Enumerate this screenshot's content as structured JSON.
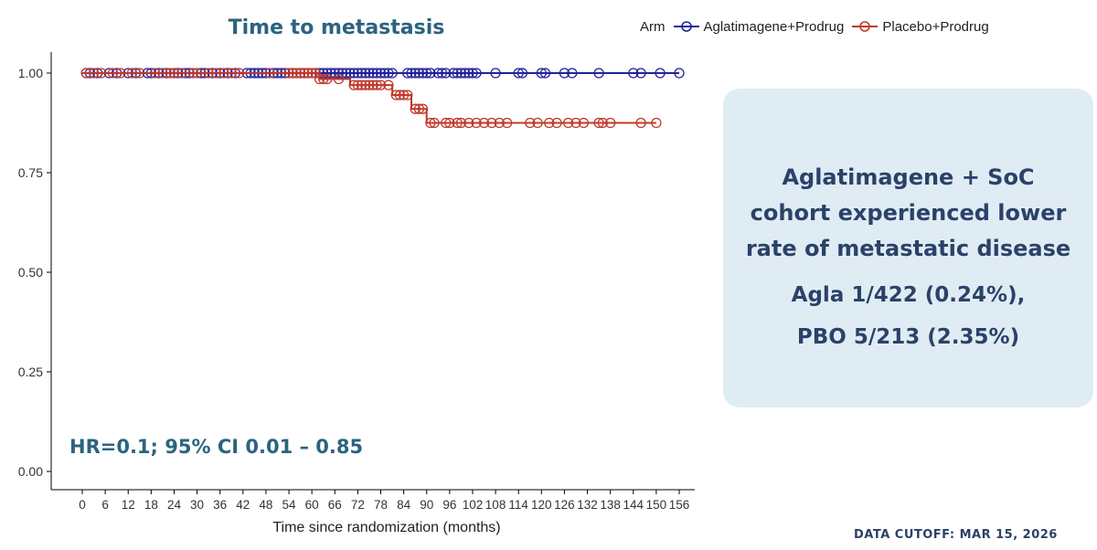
{
  "chart_data": {
    "type": "line",
    "title": "Time to metastasis",
    "xlabel": "Time since randomization (months)",
    "ylabel": "",
    "xlim": [
      0,
      156
    ],
    "ylim": [
      0,
      1
    ],
    "xticks": [
      "0",
      "6",
      "12",
      "18",
      "24",
      "30",
      "36",
      "42",
      "48",
      "54",
      "60",
      "66",
      "72",
      "78",
      "84",
      "90",
      "96",
      "102",
      "108",
      "114",
      "120",
      "126",
      "132",
      "138",
      "144",
      "150",
      "156"
    ],
    "yticks": [
      "0.00",
      "0.25",
      "0.50",
      "0.75",
      "1.00"
    ],
    "grid": false,
    "legend": {
      "title": "Arm",
      "placement": "top-right",
      "entries": [
        "Aglatimagene+Prodrug",
        "Placebo+Prodrug"
      ]
    },
    "series": [
      {
        "name": "Aglatimagene+Prodrug",
        "color": "#22229a",
        "steps": [
          [
            0,
            1.0
          ],
          [
            156,
            1.0
          ]
        ],
        "censors": [
          [
            1,
            1
          ],
          [
            2,
            1
          ],
          [
            4,
            1
          ],
          [
            7,
            1
          ],
          [
            9,
            1
          ],
          [
            12,
            1
          ],
          [
            14,
            1
          ],
          [
            17,
            1
          ],
          [
            18,
            1
          ],
          [
            20,
            1
          ],
          [
            22,
            1
          ],
          [
            24,
            1
          ],
          [
            25,
            1
          ],
          [
            27,
            1
          ],
          [
            28,
            1
          ],
          [
            31,
            1
          ],
          [
            32,
            1
          ],
          [
            34,
            1
          ],
          [
            36,
            1
          ],
          [
            38,
            1
          ],
          [
            40,
            1
          ],
          [
            43,
            1
          ],
          [
            44,
            1
          ],
          [
            45,
            1
          ],
          [
            46,
            1
          ],
          [
            47,
            1
          ],
          [
            48,
            1
          ],
          [
            50,
            1
          ],
          [
            51,
            1
          ],
          [
            52,
            1
          ],
          [
            53,
            1
          ],
          [
            55,
            1
          ],
          [
            57,
            1
          ],
          [
            58,
            1
          ],
          [
            59,
            1
          ],
          [
            61,
            1
          ],
          [
            62,
            1
          ],
          [
            63,
            1
          ],
          [
            64,
            1
          ],
          [
            65,
            1
          ],
          [
            66,
            1
          ],
          [
            67,
            1
          ],
          [
            68,
            1
          ],
          [
            69,
            1
          ],
          [
            70,
            1
          ],
          [
            71,
            1
          ],
          [
            72,
            1
          ],
          [
            73,
            1
          ],
          [
            74,
            1
          ],
          [
            75,
            1
          ],
          [
            76,
            1
          ],
          [
            77,
            1
          ],
          [
            78,
            1
          ],
          [
            79,
            1
          ],
          [
            80,
            1
          ],
          [
            81,
            1
          ],
          [
            85,
            1
          ],
          [
            86,
            1
          ],
          [
            87,
            1
          ],
          [
            88,
            1
          ],
          [
            89,
            1
          ],
          [
            90,
            1
          ],
          [
            91,
            1
          ],
          [
            93,
            1
          ],
          [
            94,
            1
          ],
          [
            95,
            1
          ],
          [
            97,
            1
          ],
          [
            98,
            1
          ],
          [
            99,
            1
          ],
          [
            100,
            1
          ],
          [
            101,
            1
          ],
          [
            102,
            1
          ],
          [
            103,
            1
          ],
          [
            108,
            1
          ],
          [
            114,
            1
          ],
          [
            115,
            1
          ],
          [
            120,
            1
          ],
          [
            121,
            1
          ],
          [
            126,
            1
          ],
          [
            128,
            1
          ],
          [
            135,
            1
          ],
          [
            144,
            1
          ],
          [
            146,
            1
          ],
          [
            151,
            1
          ],
          [
            156,
            1
          ]
        ]
      },
      {
        "name": "Placebo+Prodrug",
        "color": "#c0392b",
        "steps": [
          [
            0,
            1.0
          ],
          [
            62,
            1.0
          ],
          [
            62,
            0.985
          ],
          [
            70,
            0.985
          ],
          [
            70,
            0.97
          ],
          [
            81,
            0.97
          ],
          [
            81,
            0.945
          ],
          [
            86,
            0.945
          ],
          [
            86,
            0.91
          ],
          [
            90,
            0.91
          ],
          [
            90,
            0.875
          ],
          [
            150,
            0.875
          ]
        ],
        "censors": [
          [
            1,
            1
          ],
          [
            3,
            1
          ],
          [
            5,
            1
          ],
          [
            8,
            1
          ],
          [
            10,
            1
          ],
          [
            13,
            1
          ],
          [
            15,
            1
          ],
          [
            19,
            1
          ],
          [
            21,
            1
          ],
          [
            23,
            1
          ],
          [
            24,
            1
          ],
          [
            26,
            1
          ],
          [
            29,
            1
          ],
          [
            30,
            1
          ],
          [
            33,
            1
          ],
          [
            35,
            1
          ],
          [
            37,
            1
          ],
          [
            39,
            1
          ],
          [
            41,
            1
          ],
          [
            49,
            1
          ],
          [
            54,
            1
          ],
          [
            55,
            1
          ],
          [
            56,
            1
          ],
          [
            57,
            1
          ],
          [
            58,
            1
          ],
          [
            59,
            1
          ],
          [
            60,
            1
          ],
          [
            61,
            1
          ],
          [
            62,
            0.985
          ],
          [
            63,
            0.985
          ],
          [
            64,
            0.985
          ],
          [
            67,
            0.985
          ],
          [
            71,
            0.97
          ],
          [
            72,
            0.97
          ],
          [
            73,
            0.97
          ],
          [
            74,
            0.97
          ],
          [
            75,
            0.97
          ],
          [
            76,
            0.97
          ],
          [
            77,
            0.97
          ],
          [
            78,
            0.97
          ],
          [
            80,
            0.97
          ],
          [
            82,
            0.945
          ],
          [
            83,
            0.945
          ],
          [
            84,
            0.945
          ],
          [
            85,
            0.945
          ],
          [
            87,
            0.91
          ],
          [
            88,
            0.91
          ],
          [
            89,
            0.91
          ],
          [
            91,
            0.875
          ],
          [
            92,
            0.875
          ],
          [
            95,
            0.875
          ],
          [
            96,
            0.875
          ],
          [
            98,
            0.875
          ],
          [
            99,
            0.875
          ],
          [
            101,
            0.875
          ],
          [
            103,
            0.875
          ],
          [
            105,
            0.875
          ],
          [
            107,
            0.875
          ],
          [
            109,
            0.875
          ],
          [
            111,
            0.875
          ],
          [
            117,
            0.875
          ],
          [
            119,
            0.875
          ],
          [
            122,
            0.875
          ],
          [
            124,
            0.875
          ],
          [
            127,
            0.875
          ],
          [
            129,
            0.875
          ],
          [
            131,
            0.875
          ],
          [
            135,
            0.875
          ],
          [
            136,
            0.875
          ],
          [
            138,
            0.875
          ],
          [
            146,
            0.875
          ],
          [
            150,
            0.875
          ]
        ]
      }
    ]
  },
  "annotation": {
    "hr_text": "HR=0.1; 95% CI 0.01 – 0.85"
  },
  "callout": {
    "headline_lines": [
      "Aglatimagene + SoC",
      "cohort experienced lower",
      "rate of metastatic disease"
    ],
    "stat_agla": "Agla 1/422 (0.24%),",
    "stat_pbo": "PBO 5/213 (2.35%)"
  },
  "footer": {
    "cutoff": "DATA CUTOFF: MAR 15, 2026"
  }
}
